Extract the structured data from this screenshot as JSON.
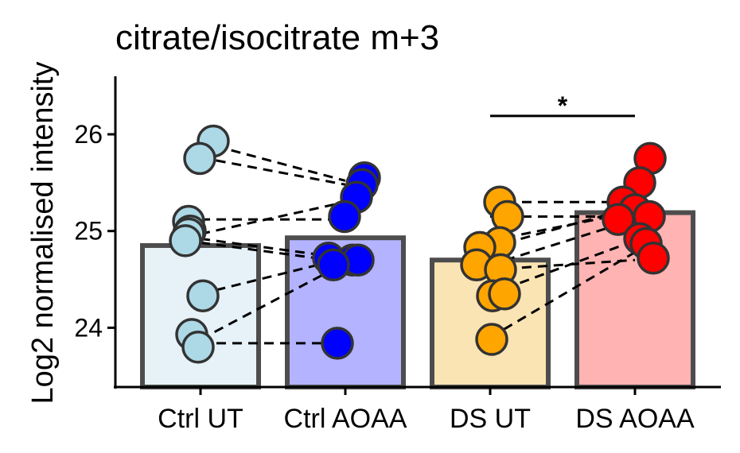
{
  "chart_data": {
    "type": "bar",
    "title": "citrate/isocitrate m+3",
    "xlabel": "",
    "ylabel": "Log2 normalised intensity",
    "ylim": [
      23.4,
      26.6
    ],
    "yticks": [
      24,
      25,
      26
    ],
    "grid": false,
    "legend": "none",
    "categories": [
      "Ctrl UT",
      "Ctrl AOAA",
      "DS UT",
      "DS AOAA"
    ],
    "bar_values": [
      24.85,
      24.93,
      24.7,
      25.19
    ],
    "bar_fill_colors": [
      "#e6f1f8",
      "#b3b3ff",
      "#fbe4b3",
      "#ffb3b3"
    ],
    "bar_border_color": "#4d4d4d",
    "point_colors": [
      "#add8e6",
      "#0000ff",
      "#ffa500",
      "#ff0000"
    ],
    "points": [
      [
        25.93,
        25.75,
        25.1,
        25.0,
        24.97,
        24.9,
        24.33,
        23.93,
        23.8
      ],
      [
        25.55,
        25.48,
        25.35,
        25.15,
        24.72,
        24.7,
        24.7,
        24.65,
        23.84
      ],
      [
        25.3,
        25.15,
        24.88,
        24.83,
        24.65,
        24.6,
        24.33,
        24.35,
        23.88
      ],
      [
        25.75,
        25.5,
        25.3,
        25.22,
        25.15,
        25.12,
        24.92,
        24.87,
        24.72
      ]
    ],
    "paired_lines": [
      {
        "from": [
          0,
          25.92
        ],
        "to": [
          1,
          25.52
        ]
      },
      {
        "from": [
          0,
          25.76
        ],
        "to": [
          1,
          25.48
        ]
      },
      {
        "from": [
          0,
          25.12
        ],
        "to": [
          1,
          25.12
        ]
      },
      {
        "from": [
          0,
          24.97
        ],
        "to": [
          1,
          25.3
        ]
      },
      {
        "from": [
          0,
          24.92
        ],
        "to": [
          1,
          24.72
        ]
      },
      {
        "from": [
          0,
          24.88
        ],
        "to": [
          1,
          24.68
        ]
      },
      {
        "from": [
          0,
          24.35
        ],
        "to": [
          1,
          24.72
        ]
      },
      {
        "from": [
          0,
          23.88
        ],
        "to": [
          1,
          24.67
        ]
      },
      {
        "from": [
          0,
          23.84
        ],
        "to": [
          1,
          23.84
        ]
      },
      {
        "from": [
          2,
          25.3
        ],
        "to": [
          3,
          25.3
        ]
      },
      {
        "from": [
          2,
          25.15
        ],
        "to": [
          3,
          25.15
        ]
      },
      {
        "from": [
          2,
          24.9
        ],
        "to": [
          3,
          25.2
        ]
      },
      {
        "from": [
          2,
          24.83
        ],
        "to": [
          3,
          25.25
        ]
      },
      {
        "from": [
          2,
          24.65
        ],
        "to": [
          3,
          25.12
        ]
      },
      {
        "from": [
          2,
          24.6
        ],
        "to": [
          3,
          24.7
        ]
      },
      {
        "from": [
          2,
          24.35
        ],
        "to": [
          3,
          24.9
        ]
      },
      {
        "from": [
          2,
          23.9
        ],
        "to": [
          3,
          24.78
        ]
      }
    ],
    "significance": {
      "from": 2,
      "to": 3,
      "y": 26.1,
      "label": "*"
    }
  }
}
